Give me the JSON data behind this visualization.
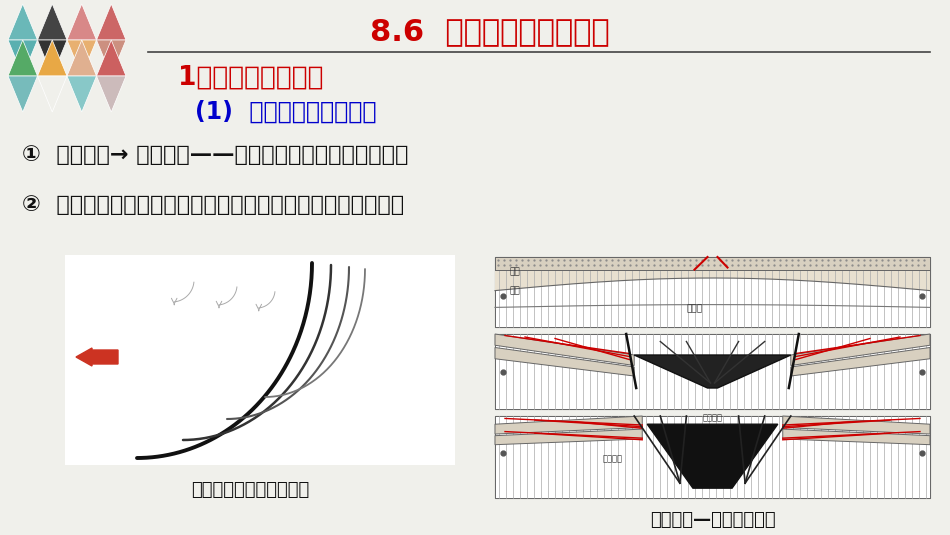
{
  "title": "8.6  断层形成的构造背景",
  "title_color": "#cc0000",
  "title_fontsize": 22,
  "bg_color": "#f0f0eb",
  "heading1": "1）正断层成因分析",
  "heading1_color": "#cc0000",
  "heading1_fontsize": 19,
  "heading2": "(1)  区域性构造应力作用",
  "heading2_color": "#0000cc",
  "heading2_fontsize": 17,
  "text1": "①  侧向拉伸→ 沉积盆地——边缘为正断层要求的应力状态",
  "text1_color": "#111111",
  "text1_fontsize": 16,
  "text2": "②  区域水平拉伸：地壳向上隆起形成垂向挤压、板块背离拉伸",
  "text2_color": "#111111",
  "text2_fontsize": 16,
  "caption_left": "侧向水平拉伸形成正断层",
  "caption_right": "板块离散—裂谷发育过程",
  "caption_fontsize": 13,
  "caption_color": "#111111",
  "separator_color": "#444444",
  "logo_row1": [
    "#6ab8b8",
    "#444444",
    "#d88888",
    "#cc6666"
  ],
  "logo_row2_dn": [
    "#5ab0b0",
    "#333333",
    "#e8b070",
    "#cc9080"
  ],
  "logo_row2_up": [
    "#55aa66",
    "#e8a845",
    "#e0b090",
    "#cc6060"
  ],
  "logo_row3_dn": [
    "#77bbbb",
    "#f0f0eb",
    "#88c8c8",
    "#ccbbbb"
  ]
}
